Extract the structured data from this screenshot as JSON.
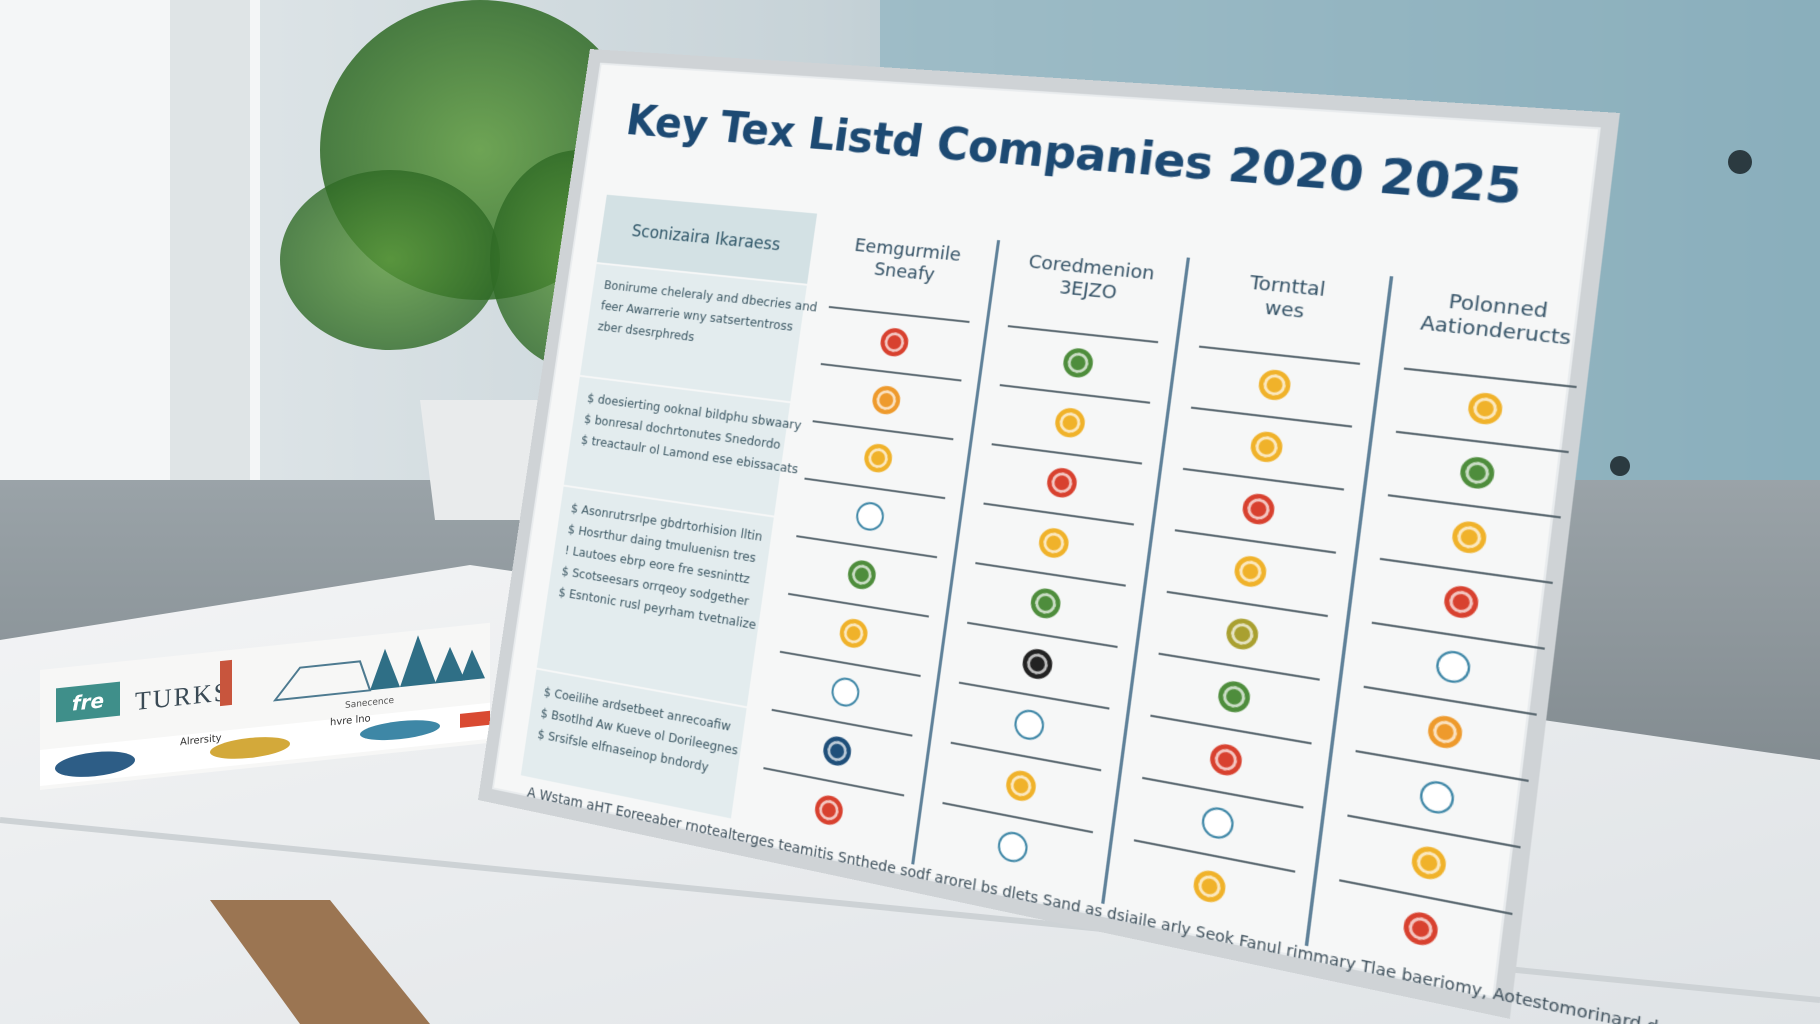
{
  "board": {
    "title": "Key Tex Listd Companies  2020 2025",
    "left_header": "Sconizaira Ikaraess",
    "left_sections": [
      [
        "Bonirume cheleraly and dbecries and",
        "feer Awarrerie wny satsertentross",
        "zber dsesrphreds"
      ],
      [
        "$ doesierting ooknal bildphu sbwaary",
        "$ bonresal dochrtonutes Snedordo",
        "$ treactaulr ol Lamond ese ebissacats"
      ],
      [
        "$ Asonrutrsrlpe gbdrtorhision lltin",
        "$ Hosrthur daing tmuluenisn tres",
        "! Lautoes ebrp eore fre sesninttz",
        "$ Scotseesars orrqeoy sodgether",
        "$ Esntonic rusl peyrham tvetnalize"
      ],
      [
        "$ Coeilihe ardsetbeet anrecoafiw",
        "$ Bsotlhd Aw Kueve ol Dorileegnes",
        "$ Srsifsle elfnaseinop bndordy"
      ]
    ],
    "columns": [
      [
        "Eemgurmile",
        "Sneafy"
      ],
      [
        "Coredmenion",
        "3EJZO"
      ],
      [
        "Tornttal",
        "wes"
      ],
      [
        "Polonned",
        "Aationderucts"
      ]
    ],
    "footnote": "A Wstam aHT Eoreeaber rnotealterges teamitis Snthede sodf arorel bs dlets Sand as dsiaile arly Seok Fanul rimmary Tlae baeriomy, Aotestomorinard doet"
  },
  "card": {
    "logo": "fre",
    "name": "TURKS",
    "labels": [
      "Sanecence",
      "Alrersity",
      "hvre lno"
    ]
  }
}
